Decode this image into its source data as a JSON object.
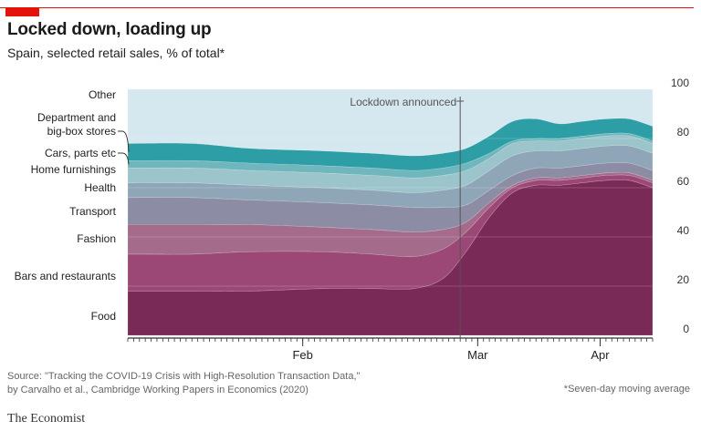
{
  "header": {
    "title": "Locked down, loading up",
    "subtitle": "Spain, selected retail sales, % of total*"
  },
  "footer": {
    "source_line1": "Source: \"Tracking the COVID-19 Crisis with High-Resolution Transaction Data,\"",
    "source_line2": "by Carvalho et al., Cambridge Working Papers in Economics (2020)",
    "footnote": "*Seven-day moving average",
    "brand": "The Economist"
  },
  "colors": {
    "accent": "#e3120b",
    "background_area": "#d5e7ef",
    "Food": "#7a2a56",
    "Bars and restaurants": "#9c4876",
    "Fashion": "#a46b8b",
    "Transport": "#8c8da4",
    "Health": "#8fa6b8",
    "Home furnishings": "#9bc4cb",
    "Cars, parts etc": "#6fb7bd",
    "Department and big-box stores": "#2e9ea6",
    "Other": "#d5e7ef"
  },
  "chart_data": {
    "type": "area",
    "title": "Locked down, loading up",
    "subtitle": "Spain, selected retail sales, % of total*",
    "stacked": true,
    "ylim": [
      0,
      100
    ],
    "yticks": [
      0,
      20,
      40,
      60,
      80,
      100
    ],
    "y_axis_side": "right",
    "xlim": [
      "2020-01-16",
      "2020-04-15"
    ],
    "x_ticks": [
      {
        "label": "Feb",
        "date": "2020-02-15"
      },
      {
        "label": "Mar",
        "date": "2020-03-16"
      },
      {
        "label": "Apr",
        "date": "2020-04-06"
      }
    ],
    "annotation": {
      "text": "Lockdown announced",
      "date": "2020-03-13"
    },
    "x": [
      "2020-01-16",
      "2020-01-27",
      "2020-02-06",
      "2020-02-18",
      "2020-02-27",
      "2020-03-05",
      "2020-03-10",
      "2020-03-14",
      "2020-03-18",
      "2020-03-22",
      "2020-03-26",
      "2020-03-30",
      "2020-04-03",
      "2020-04-07",
      "2020-04-11",
      "2020-04-15"
    ],
    "series": [
      {
        "name": "Food",
        "values": [
          18,
          18,
          18,
          19,
          19,
          19,
          23,
          34,
          48,
          58,
          61,
          61,
          62,
          63,
          63,
          60
        ]
      },
      {
        "name": "Bars and restaurants",
        "values": [
          15,
          15,
          16,
          15,
          14,
          13,
          12,
          8,
          4,
          2,
          2,
          2,
          2,
          2,
          2,
          2
        ]
      },
      {
        "name": "Fashion",
        "values": [
          12,
          12,
          11,
          10,
          10,
          10,
          8,
          4,
          2,
          1,
          1,
          1,
          1,
          1,
          1,
          1
        ]
      },
      {
        "name": "Transport",
        "values": [
          11,
          11,
          10,
          10,
          10,
          10,
          9,
          7,
          5,
          4,
          4,
          4,
          4,
          4,
          4,
          4
        ]
      },
      {
        "name": "Health",
        "values": [
          6,
          6,
          6,
          6,
          6,
          6,
          7,
          8,
          8,
          8,
          7,
          7,
          7,
          7,
          7,
          7
        ]
      },
      {
        "name": "Home furnishings",
        "values": [
          6,
          6,
          6,
          6,
          6,
          6,
          6,
          6,
          5,
          5,
          4,
          4,
          4,
          4,
          4,
          4
        ]
      },
      {
        "name": "Cars, parts etc",
        "values": [
          3,
          3,
          3,
          3,
          3,
          3,
          3,
          3,
          2,
          1,
          1,
          1,
          1,
          1,
          1,
          1
        ]
      },
      {
        "name": "Department and big-box stores",
        "values": [
          7,
          7,
          6,
          6,
          6,
          6,
          6,
          6,
          7,
          8,
          8,
          6,
          6,
          6,
          6,
          6
        ]
      },
      {
        "name": "Other",
        "values": [
          22,
          22,
          24,
          25,
          26,
          27,
          26,
          24,
          19,
          13,
          12,
          14,
          13,
          12,
          12,
          15
        ]
      }
    ],
    "series_labels": [
      {
        "key": "Other",
        "lines": [
          "Other"
        ]
      },
      {
        "key": "Department and big-box stores",
        "lines": [
          "Department and",
          "big-box stores"
        ]
      },
      {
        "key": "Cars, parts etc",
        "lines": [
          "Cars, parts etc"
        ]
      },
      {
        "key": "Home furnishings",
        "lines": [
          "Home furnishings"
        ]
      },
      {
        "key": "Health",
        "lines": [
          "Health"
        ]
      },
      {
        "key": "Transport",
        "lines": [
          "Transport"
        ]
      },
      {
        "key": "Fashion",
        "lines": [
          "Fashion"
        ]
      },
      {
        "key": "Bars and restaurants",
        "lines": [
          "Bars and restaurants"
        ]
      },
      {
        "key": "Food",
        "lines": [
          "Food"
        ]
      }
    ]
  }
}
